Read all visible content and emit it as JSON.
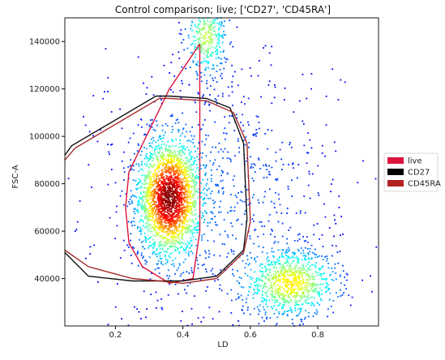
{
  "chart_data": {
    "type": "scatter",
    "title": "Control comparison; live; ['CD27', 'CD45RA']",
    "xlabel": "LD",
    "ylabel": "FSC-A",
    "xlim": [
      0.05,
      0.98
    ],
    "ylim": [
      20000,
      150000
    ],
    "xticks": [
      0.2,
      0.4,
      0.6,
      0.8
    ],
    "xtick_labels": [
      "0.2",
      "0.4",
      "0.6",
      "0.8"
    ],
    "yticks": [
      40000,
      60000,
      80000,
      100000,
      120000,
      140000
    ],
    "ytick_labels": [
      "40000",
      "60000",
      "80000",
      "100000",
      "120000",
      "140000"
    ],
    "grid": false,
    "legend_position": "right-outside",
    "colormap": "jet density",
    "density_clusters": [
      {
        "name": "main",
        "cx": 0.36,
        "cy": 74000,
        "sx": 0.045,
        "sy": 12000,
        "n": 2200
      },
      {
        "name": "lower-right",
        "cx": 0.72,
        "cy": 38000,
        "sx": 0.07,
        "sy": 7000,
        "n": 900
      },
      {
        "name": "top-streak",
        "cx": 0.47,
        "cy": 142000,
        "sx": 0.03,
        "sy": 8000,
        "n": 350
      },
      {
        "name": "diffuse",
        "cx": 0.5,
        "cy": 75000,
        "sx": 0.18,
        "sy": 30000,
        "n": 900
      }
    ],
    "series": [
      {
        "name": "live",
        "color": "#dc143c",
        "x": [
          0.45,
          0.36,
          0.24,
          0.23,
          0.24,
          0.28,
          0.36,
          0.43,
          0.45,
          0.45,
          0.45
        ],
        "y": [
          139000,
          120000,
          85000,
          70000,
          55000,
          45000,
          38000,
          40000,
          60000,
          100000,
          139000
        ]
      },
      {
        "name": "CD27",
        "color": "#111111",
        "x": [
          0.05,
          0.07,
          0.32,
          0.36,
          0.47,
          0.54,
          0.58,
          0.59,
          0.58,
          0.5,
          0.4,
          0.33,
          0.25,
          0.12,
          0.05
        ],
        "y": [
          92000,
          96000,
          117000,
          117000,
          116000,
          112000,
          97000,
          65000,
          52000,
          41000,
          39000,
          39000,
          39000,
          41000,
          51000
        ]
      },
      {
        "name": "CD45RA",
        "color": "#a52a2a",
        "x": [
          0.05,
          0.08,
          0.33,
          0.36,
          0.47,
          0.55,
          0.59,
          0.6,
          0.58,
          0.5,
          0.4,
          0.33,
          0.25,
          0.12,
          0.05
        ],
        "y": [
          90000,
          95000,
          116000,
          116000,
          115000,
          110000,
          97000,
          64000,
          51000,
          40000,
          38000,
          39000,
          40000,
          45000,
          52000
        ]
      }
    ]
  },
  "legend": {
    "items": [
      {
        "label": "live",
        "color": "#dc143c"
      },
      {
        "label": "CD27",
        "color": "#000000"
      },
      {
        "label": "CD45RA",
        "color": "#b22222"
      }
    ]
  }
}
